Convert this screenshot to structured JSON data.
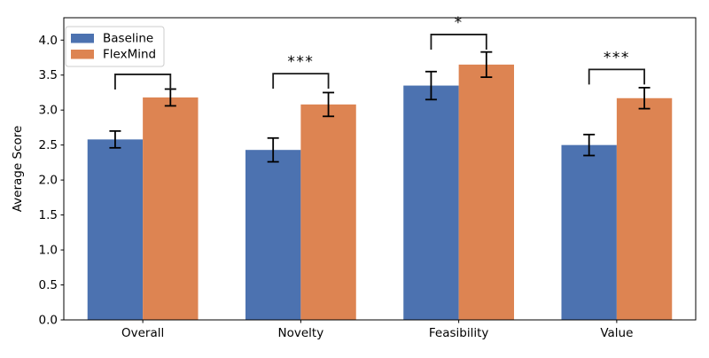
{
  "chart_data": {
    "type": "bar",
    "title": "",
    "xlabel": "",
    "ylabel": "Average Score",
    "categories": [
      "Overall",
      "Novelty",
      "Feasibility",
      "Value"
    ],
    "series": [
      {
        "name": "Baseline",
        "color": "#4C72B0",
        "values": [
          2.58,
          2.43,
          3.35,
          2.5
        ],
        "errors": [
          0.12,
          0.17,
          0.2,
          0.15
        ]
      },
      {
        "name": "FlexMind",
        "color": "#DD8452",
        "values": [
          3.18,
          3.08,
          3.65,
          3.17
        ],
        "errors": [
          0.12,
          0.17,
          0.18,
          0.15
        ]
      }
    ],
    "significance": [
      {
        "category": "Overall",
        "label": "",
        "bracket_y": 3.51
      },
      {
        "category": "Novelty",
        "label": "***",
        "bracket_y": 3.52
      },
      {
        "category": "Feasibility",
        "label": "*",
        "bracket_y": 4.08
      },
      {
        "category": "Value",
        "label": "***",
        "bracket_y": 3.58
      }
    ],
    "ylim": [
      0,
      4.32
    ],
    "ytick_values": [
      0,
      0.5,
      1,
      1.5,
      2,
      2.5,
      3,
      3.5,
      4
    ],
    "ytick_labels": [
      "0.0",
      "0.5",
      "1.0",
      "1.5",
      "2.0",
      "2.5",
      "3.0",
      "3.5",
      "4.0"
    ],
    "grid": false,
    "bar_width_fraction": 0.35,
    "legend": {
      "position": "upper left",
      "entries": [
        {
          "label": "Baseline",
          "color": "#4C72B0"
        },
        {
          "label": "FlexMind",
          "color": "#DD8452"
        }
      ]
    },
    "colors": {
      "error_bar": "#000000",
      "bracket": "#1a1a1a",
      "axis": "#000000",
      "background": "#ffffff",
      "legend_border": "#cccccc"
    }
  }
}
